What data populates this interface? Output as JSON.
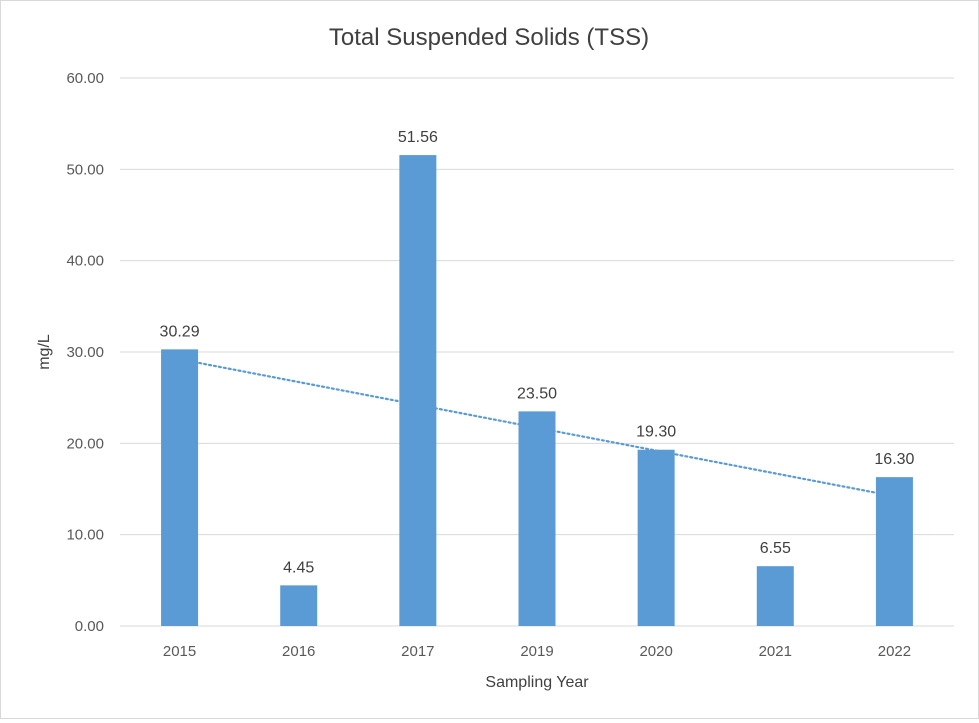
{
  "chart_data": {
    "type": "bar",
    "title": "Total Suspended Solids (TSS)",
    "xlabel": "Sampling Year",
    "ylabel": "mg/L",
    "categories": [
      "2015",
      "2016",
      "2017",
      "2019",
      "2020",
      "2021",
      "2022"
    ],
    "values": [
      30.29,
      4.45,
      51.56,
      23.5,
      19.3,
      6.55,
      16.3
    ],
    "value_labels": [
      "30.29",
      "4.45",
      "51.56",
      "23.50",
      "19.30",
      "6.55",
      "16.30"
    ],
    "ylim": [
      0,
      60
    ],
    "yticks": [
      0,
      10,
      20,
      30,
      40,
      50,
      60
    ],
    "ytick_labels": [
      "0.00",
      "10.00",
      "20.00",
      "30.00",
      "40.00",
      "50.00",
      "60.00"
    ],
    "trendline": {
      "type": "linear",
      "style": "dotted"
    },
    "grid": true,
    "legend": "none",
    "colors": {
      "bar": "#5b9bd5",
      "trendline": "#5b9bd5",
      "grid": "#d9d9d9"
    }
  }
}
